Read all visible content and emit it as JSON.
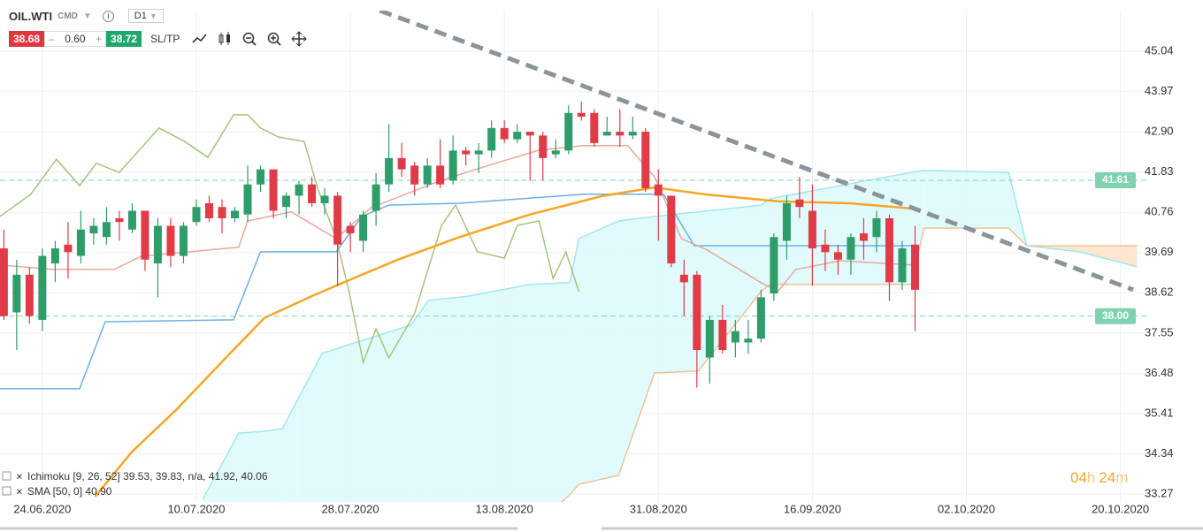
{
  "toolbar": {
    "symbol": "OIL.WTI",
    "market": "CMD",
    "timeframe": "D1",
    "bid": "38.68",
    "spread": "0.60",
    "ask": "38.72",
    "sltp": "SL/TP"
  },
  "countdown": {
    "hours": "04",
    "h": "h",
    "minutes": "24",
    "m": "m"
  },
  "chart_data": {
    "type": "candlestick",
    "categories": [
      null,
      null,
      null,
      "24.06.2020",
      null,
      null,
      null,
      null,
      null,
      null,
      null,
      null,
      null,
      null,
      null,
      "10.07.2020",
      null,
      null,
      null,
      null,
      null,
      null,
      null,
      null,
      null,
      null,
      null,
      "28.07.2020",
      null,
      null,
      null,
      null,
      null,
      null,
      null,
      null,
      null,
      null,
      null,
      "13.08.2020",
      null,
      null,
      null,
      null,
      null,
      null,
      null,
      null,
      null,
      null,
      null,
      "31.08.2020",
      null,
      null,
      null,
      null,
      null,
      null,
      null,
      null,
      null,
      null,
      null,
      "16.09.2020",
      null,
      null,
      null,
      null,
      null,
      null,
      null,
      null,
      null,
      null,
      null,
      "02.10.2020",
      null,
      null,
      null,
      null,
      null,
      null,
      null,
      null,
      null,
      null,
      null,
      "20.10.2020",
      null,
      null
    ],
    "open": [
      39.8,
      38.1,
      39.1,
      37.9,
      39.4,
      39.9,
      39.6,
      40.2,
      40.1,
      40.6,
      40.3,
      40.8,
      39.4,
      40.4,
      39.6,
      40.5,
      41.0,
      40.9,
      40.6,
      40.7,
      41.5,
      41.9,
      40.9,
      41.2,
      41.5,
      41.0,
      41.2,
      40.4,
      40.0,
      40.8,
      41.5,
      42.2,
      42.0,
      41.5,
      42.0,
      41.6,
      42.4,
      42.3,
      42.4,
      43.0,
      42.7,
      42.9,
      42.8,
      42.3,
      42.4,
      43.4,
      43.4,
      42.8,
      42.9,
      42.8,
      42.9,
      41.5,
      41.2,
      39.1,
      39.1,
      36.9,
      37.9,
      37.3,
      37.3,
      37.4,
      38.6,
      40.0,
      41.1,
      40.8,
      39.9,
      39.7,
      39.5,
      40.2,
      40.1,
      40.6,
      38.9,
      39.9,
      null,
      null,
      null,
      null,
      null,
      null,
      null,
      null,
      null,
      null,
      null,
      null,
      null,
      null,
      null,
      null,
      null,
      null
    ],
    "high": [
      40.3,
      39.5,
      39.3,
      39.8,
      40.0,
      40.5,
      40.8,
      40.6,
      40.9,
      40.8,
      41.0,
      40.8,
      40.6,
      40.6,
      40.5,
      41.1,
      41.2,
      41.1,
      40.9,
      42.0,
      42.0,
      41.9,
      41.3,
      41.6,
      41.7,
      41.4,
      41.3,
      40.5,
      40.8,
      41.8,
      43.1,
      42.6,
      42.1,
      42.2,
      42.7,
      42.8,
      42.5,
      42.6,
      43.2,
      43.2,
      43.1,
      42.9,
      42.9,
      42.7,
      43.6,
      43.7,
      43.5,
      43.3,
      43.5,
      43.3,
      43.0,
      41.9,
      41.2,
      39.5,
      39.2,
      38.0,
      38.3,
      37.9,
      37.9,
      38.7,
      40.2,
      41.2,
      41.7,
      41.5,
      40.3,
      39.9,
      40.2,
      40.6,
      40.8,
      40.7,
      40.0,
      40.4,
      null,
      null,
      null,
      null,
      null,
      null,
      null,
      null,
      null,
      null,
      null,
      null,
      null,
      null,
      null,
      null,
      null,
      null
    ],
    "low": [
      37.9,
      37.1,
      37.8,
      37.6,
      38.9,
      39.0,
      39.4,
      39.9,
      39.9,
      40.0,
      40.2,
      39.2,
      38.5,
      39.3,
      39.4,
      40.4,
      40.5,
      40.2,
      40.5,
      40.5,
      41.3,
      40.6,
      40.6,
      40.7,
      40.9,
      40.7,
      38.8,
      39.7,
      39.7,
      40.4,
      41.3,
      41.7,
      41.2,
      41.4,
      41.4,
      41.5,
      42.0,
      41.8,
      42.2,
      42.6,
      42.6,
      41.6,
      41.6,
      42.2,
      42.3,
      43.2,
      42.5,
      42.8,
      42.5,
      42.7,
      41.3,
      40.0,
      39.3,
      38.0,
      36.1,
      36.2,
      37.0,
      36.9,
      37.0,
      37.3,
      38.4,
      39.5,
      40.6,
      38.8,
      39.2,
      39.1,
      39.1,
      39.5,
      39.7,
      38.4,
      38.7,
      37.6,
      null,
      null,
      null,
      null,
      null,
      null,
      null,
      null,
      null,
      null,
      null,
      null,
      null,
      null,
      null,
      null,
      null,
      null
    ],
    "close": [
      38.0,
      39.1,
      38.0,
      39.6,
      39.8,
      39.7,
      40.3,
      40.4,
      40.5,
      40.5,
      40.8,
      39.5,
      40.4,
      39.6,
      40.4,
      40.9,
      40.6,
      40.6,
      40.8,
      41.5,
      41.9,
      40.8,
      41.2,
      41.5,
      41.0,
      41.2,
      39.9,
      40.2,
      40.7,
      41.5,
      42.2,
      41.9,
      41.5,
      42.0,
      41.5,
      42.4,
      42.3,
      42.4,
      43.0,
      42.7,
      42.9,
      42.8,
      42.2,
      42.4,
      43.4,
      43.3,
      42.6,
      42.9,
      42.8,
      42.9,
      41.4,
      41.2,
      39.4,
      38.9,
      37.1,
      37.9,
      37.1,
      37.6,
      37.4,
      38.5,
      40.1,
      41.0,
      40.9,
      39.8,
      39.7,
      39.5,
      40.1,
      40.0,
      40.6,
      38.9,
      39.8,
      38.7,
      null,
      null,
      null,
      null,
      null,
      null,
      null,
      null,
      null,
      null,
      null,
      null,
      null,
      null,
      null,
      null,
      null,
      null
    ],
    "up_color": "#2f9d6a",
    "down_color": "#e23b48",
    "xlim": [
      -0.3,
      89.3
    ],
    "ylim": [
      33.06,
      46.12
    ],
    "yticks": [
      45.04,
      43.97,
      {
        "value": 42.9,
        "label": "42.90"
      },
      41.83,
      40.76,
      39.69,
      38.62,
      37.55,
      36.48,
      35.41,
      34.34,
      33.27
    ],
    "grid": true,
    "cloud": {
      "x": [
        15.5,
        18.3,
        20.3,
        21.7,
        22.8,
        24.8,
        31.7,
        33.1,
        36.2,
        41,
        44.1,
        44.8,
        47.9,
        50.7,
        54.1,
        59,
        59.7,
        70.7,
        71.7,
        78.3,
        79.7,
        83.8,
        88.3
      ],
      "span_a": [
        32.31,
        32.31,
        32.31,
        32.31,
        32.31,
        32.31,
        32.31,
        32.31,
        32.31,
        32.31,
        33.25,
        33.53,
        33.77,
        36.49,
        36.54,
        38.65,
        38.84,
        38.84,
        40.34,
        40.34,
        39.87,
        39.87,
        39.87
      ],
      "span_b": [
        33.13,
        34.89,
        34.94,
        35.01,
        35.72,
        37.01,
        37.76,
        38.42,
        38.53,
        38.84,
        38.89,
        40.06,
        40.53,
        40.65,
        40.77,
        40.95,
        41.12,
        41.82,
        41.87,
        41.82,
        39.87,
        39.71,
        39.31
      ],
      "span_a_color": "#e9c39a",
      "span_b_color": "#9ee8ee",
      "colors": [
        "#dcfafc",
        "#fde3c8"
      ]
    },
    "series": [
      {
        "color": "#6aaee8",
        "x": [
          -0.3,
          5.9,
          7.9,
          17.9,
          20,
          25.9,
          27.9,
          30,
          35.5,
          45.2,
          51.4,
          53.8,
          70.7
        ],
        "values": [
          36.07,
          36.07,
          37.85,
          37.9,
          39.71,
          39.71,
          40.65,
          40.95,
          41.0,
          41.24,
          41.24,
          39.87,
          39.87
        ]
      },
      {
        "color": "#e8a89a",
        "x": [
          -0.3,
          3.8,
          8.6,
          10.7,
          18.3,
          19,
          22.4,
          25.9,
          28.6,
          34,
          38.3,
          41.7,
          45.2,
          48.6,
          50.7,
          52.8,
          54.8,
          59,
          60.3,
          61.7,
          65.2,
          70.7
        ],
        "values": [
          39.36,
          39.24,
          39.24,
          39.59,
          39.83,
          40.53,
          40.77,
          40.06,
          40.88,
          41.6,
          42.06,
          42.41,
          42.53,
          42.53,
          41.7,
          40.06,
          39.76,
          38.89,
          38.65,
          39.24,
          39.47,
          39.36
        ]
      },
      {
        "color": "#a5c47a",
        "x": [
          -0.3,
          2.1,
          4.1,
          5.9,
          7.2,
          9,
          12.1,
          14.1,
          15.9,
          17.9,
          19,
          20,
          21.4,
          23.4,
          24.5,
          25.9,
          26.9,
          28,
          29,
          30,
          32,
          34.1,
          35.2,
          36.9,
          39,
          40,
          41.7,
          42.8,
          43.8,
          44.8
        ],
        "values": [
          40.65,
          41.24,
          42.17,
          41.47,
          42.06,
          41.82,
          43.0,
          42.64,
          42.22,
          43.35,
          43.35,
          43.0,
          42.76,
          42.64,
          41.35,
          40.06,
          38.65,
          36.77,
          37.66,
          36.89,
          38.06,
          40.41,
          40.95,
          39.71,
          39.54,
          40.41,
          40.53,
          39.0,
          39.71,
          38.65
        ]
      },
      {
        "color": "#f5a623",
        "x": [
          7.1,
          10,
          13.4,
          17.6,
          20.3,
          23.8,
          27.2,
          30.7,
          35.5,
          41,
          46.6,
          50.7,
          54.8,
          60.3,
          65.9,
          70.7
        ],
        "values": [
          33.2,
          34.4,
          35.5,
          37.0,
          37.95,
          38.5,
          39.0,
          39.5,
          40.1,
          40.7,
          41.19,
          41.42,
          41.23,
          41.05,
          41.0,
          40.86
        ]
      }
    ],
    "trendline": {
      "color": "#8a949c",
      "x": [
        29.3,
        88
      ],
      "values": [
        46.12,
        38.7
      ]
    },
    "levels": [
      41.61,
      {
        "value": 38,
        "label": "38.00"
      }
    ],
    "level_color": "#7fd3b0",
    "indicators": [
      {
        "name": "Ichimoku [9, 26, 52]",
        "values": "39.53, 39.83, n/a, 41.92, 40.06"
      },
      {
        "name": "SMA [50, 0]",
        "values": "40.90"
      }
    ]
  }
}
